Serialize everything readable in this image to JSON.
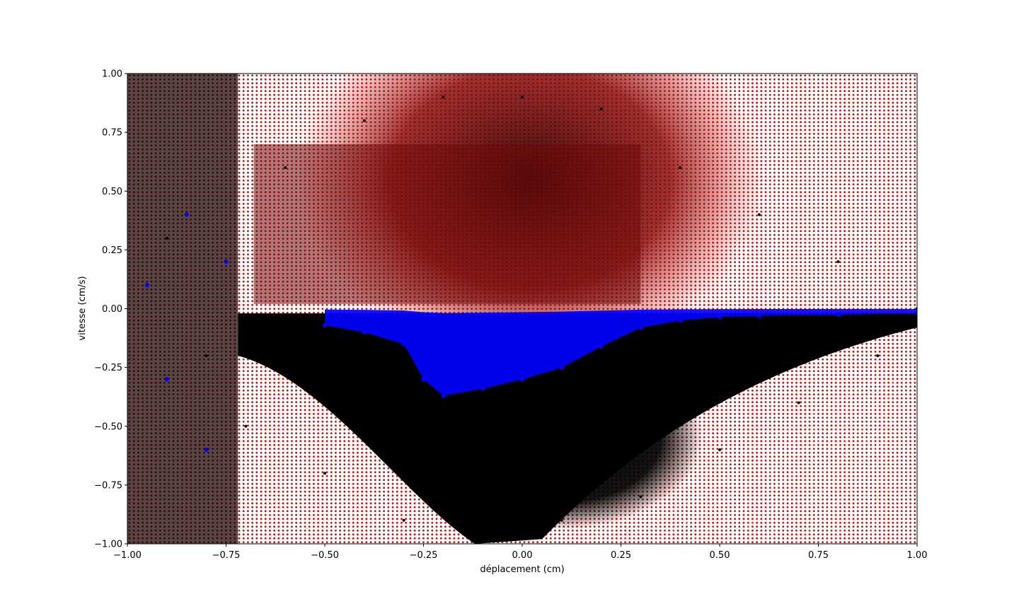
{
  "chart_data": {
    "type": "scatter",
    "title": "",
    "xlabel": "déplacement (cm)",
    "ylabel": "vitesse (cm/s)",
    "xlim": [
      -1.0,
      1.0
    ],
    "ylim": [
      -1.0,
      1.0
    ],
    "x_ticks": [
      -1.0,
      -0.75,
      -0.5,
      -0.25,
      0.0,
      0.25,
      0.5,
      0.75,
      1.0
    ],
    "x_tick_labels": [
      "−1.00",
      "−0.75",
      "−0.50",
      "−0.25",
      "0.00",
      "0.25",
      "0.50",
      "0.75",
      "1.00"
    ],
    "y_ticks": [
      -1.0,
      -0.75,
      -0.5,
      -0.25,
      0.0,
      0.25,
      0.5,
      0.75,
      1.0
    ],
    "y_tick_labels": [
      "−1.00",
      "−0.75",
      "−0.50",
      "−0.25",
      "0.00",
      "0.25",
      "0.50",
      "0.75",
      "1.00"
    ],
    "grid": false,
    "legend": false,
    "series": [
      {
        "role": "initial-state grid",
        "color": "#d62728",
        "x_range": [
          -1.0,
          1.0
        ],
        "y_range": [
          -1.0,
          1.0
        ],
        "description_points": "uniform grid of starting points covering the whole phase plane"
      },
      {
        "role": "trajectories",
        "color": "#000000",
        "points": [
          [
            -0.9,
            0.3
          ],
          [
            -0.8,
            -0.2
          ],
          [
            -0.7,
            -0.5
          ],
          [
            -0.6,
            0.6
          ],
          [
            -0.5,
            -0.7
          ],
          [
            -0.4,
            0.8
          ],
          [
            -0.3,
            -0.9
          ],
          [
            -0.2,
            0.9
          ],
          [
            -0.1,
            -0.95
          ],
          [
            0.0,
            0.9
          ],
          [
            0.1,
            -0.9
          ],
          [
            0.2,
            0.85
          ],
          [
            0.3,
            -0.8
          ],
          [
            0.4,
            0.6
          ],
          [
            0.5,
            -0.6
          ],
          [
            0.6,
            0.4
          ],
          [
            0.7,
            -0.4
          ],
          [
            0.8,
            0.2
          ],
          [
            0.9,
            -0.2
          ],
          [
            1.0,
            0.0
          ]
        ]
      },
      {
        "role": "final states",
        "color": "#0000ff",
        "points": [
          [
            -0.95,
            0.1
          ],
          [
            -0.9,
            -0.3
          ],
          [
            -0.85,
            0.4
          ],
          [
            -0.8,
            -0.6
          ],
          [
            -0.75,
            0.2
          ],
          [
            -0.5,
            -0.07
          ],
          [
            -0.4,
            -0.1
          ],
          [
            -0.3,
            -0.15
          ],
          [
            -0.25,
            -0.3
          ],
          [
            -0.2,
            -0.37
          ],
          [
            -0.1,
            -0.34
          ],
          [
            0.0,
            -0.3
          ],
          [
            0.1,
            -0.25
          ],
          [
            0.2,
            -0.16
          ],
          [
            0.3,
            -0.08
          ],
          [
            0.4,
            -0.05
          ],
          [
            0.5,
            -0.035
          ],
          [
            0.6,
            -0.03
          ],
          [
            0.8,
            -0.025
          ],
          [
            1.0,
            -0.02
          ]
        ]
      }
    ]
  }
}
